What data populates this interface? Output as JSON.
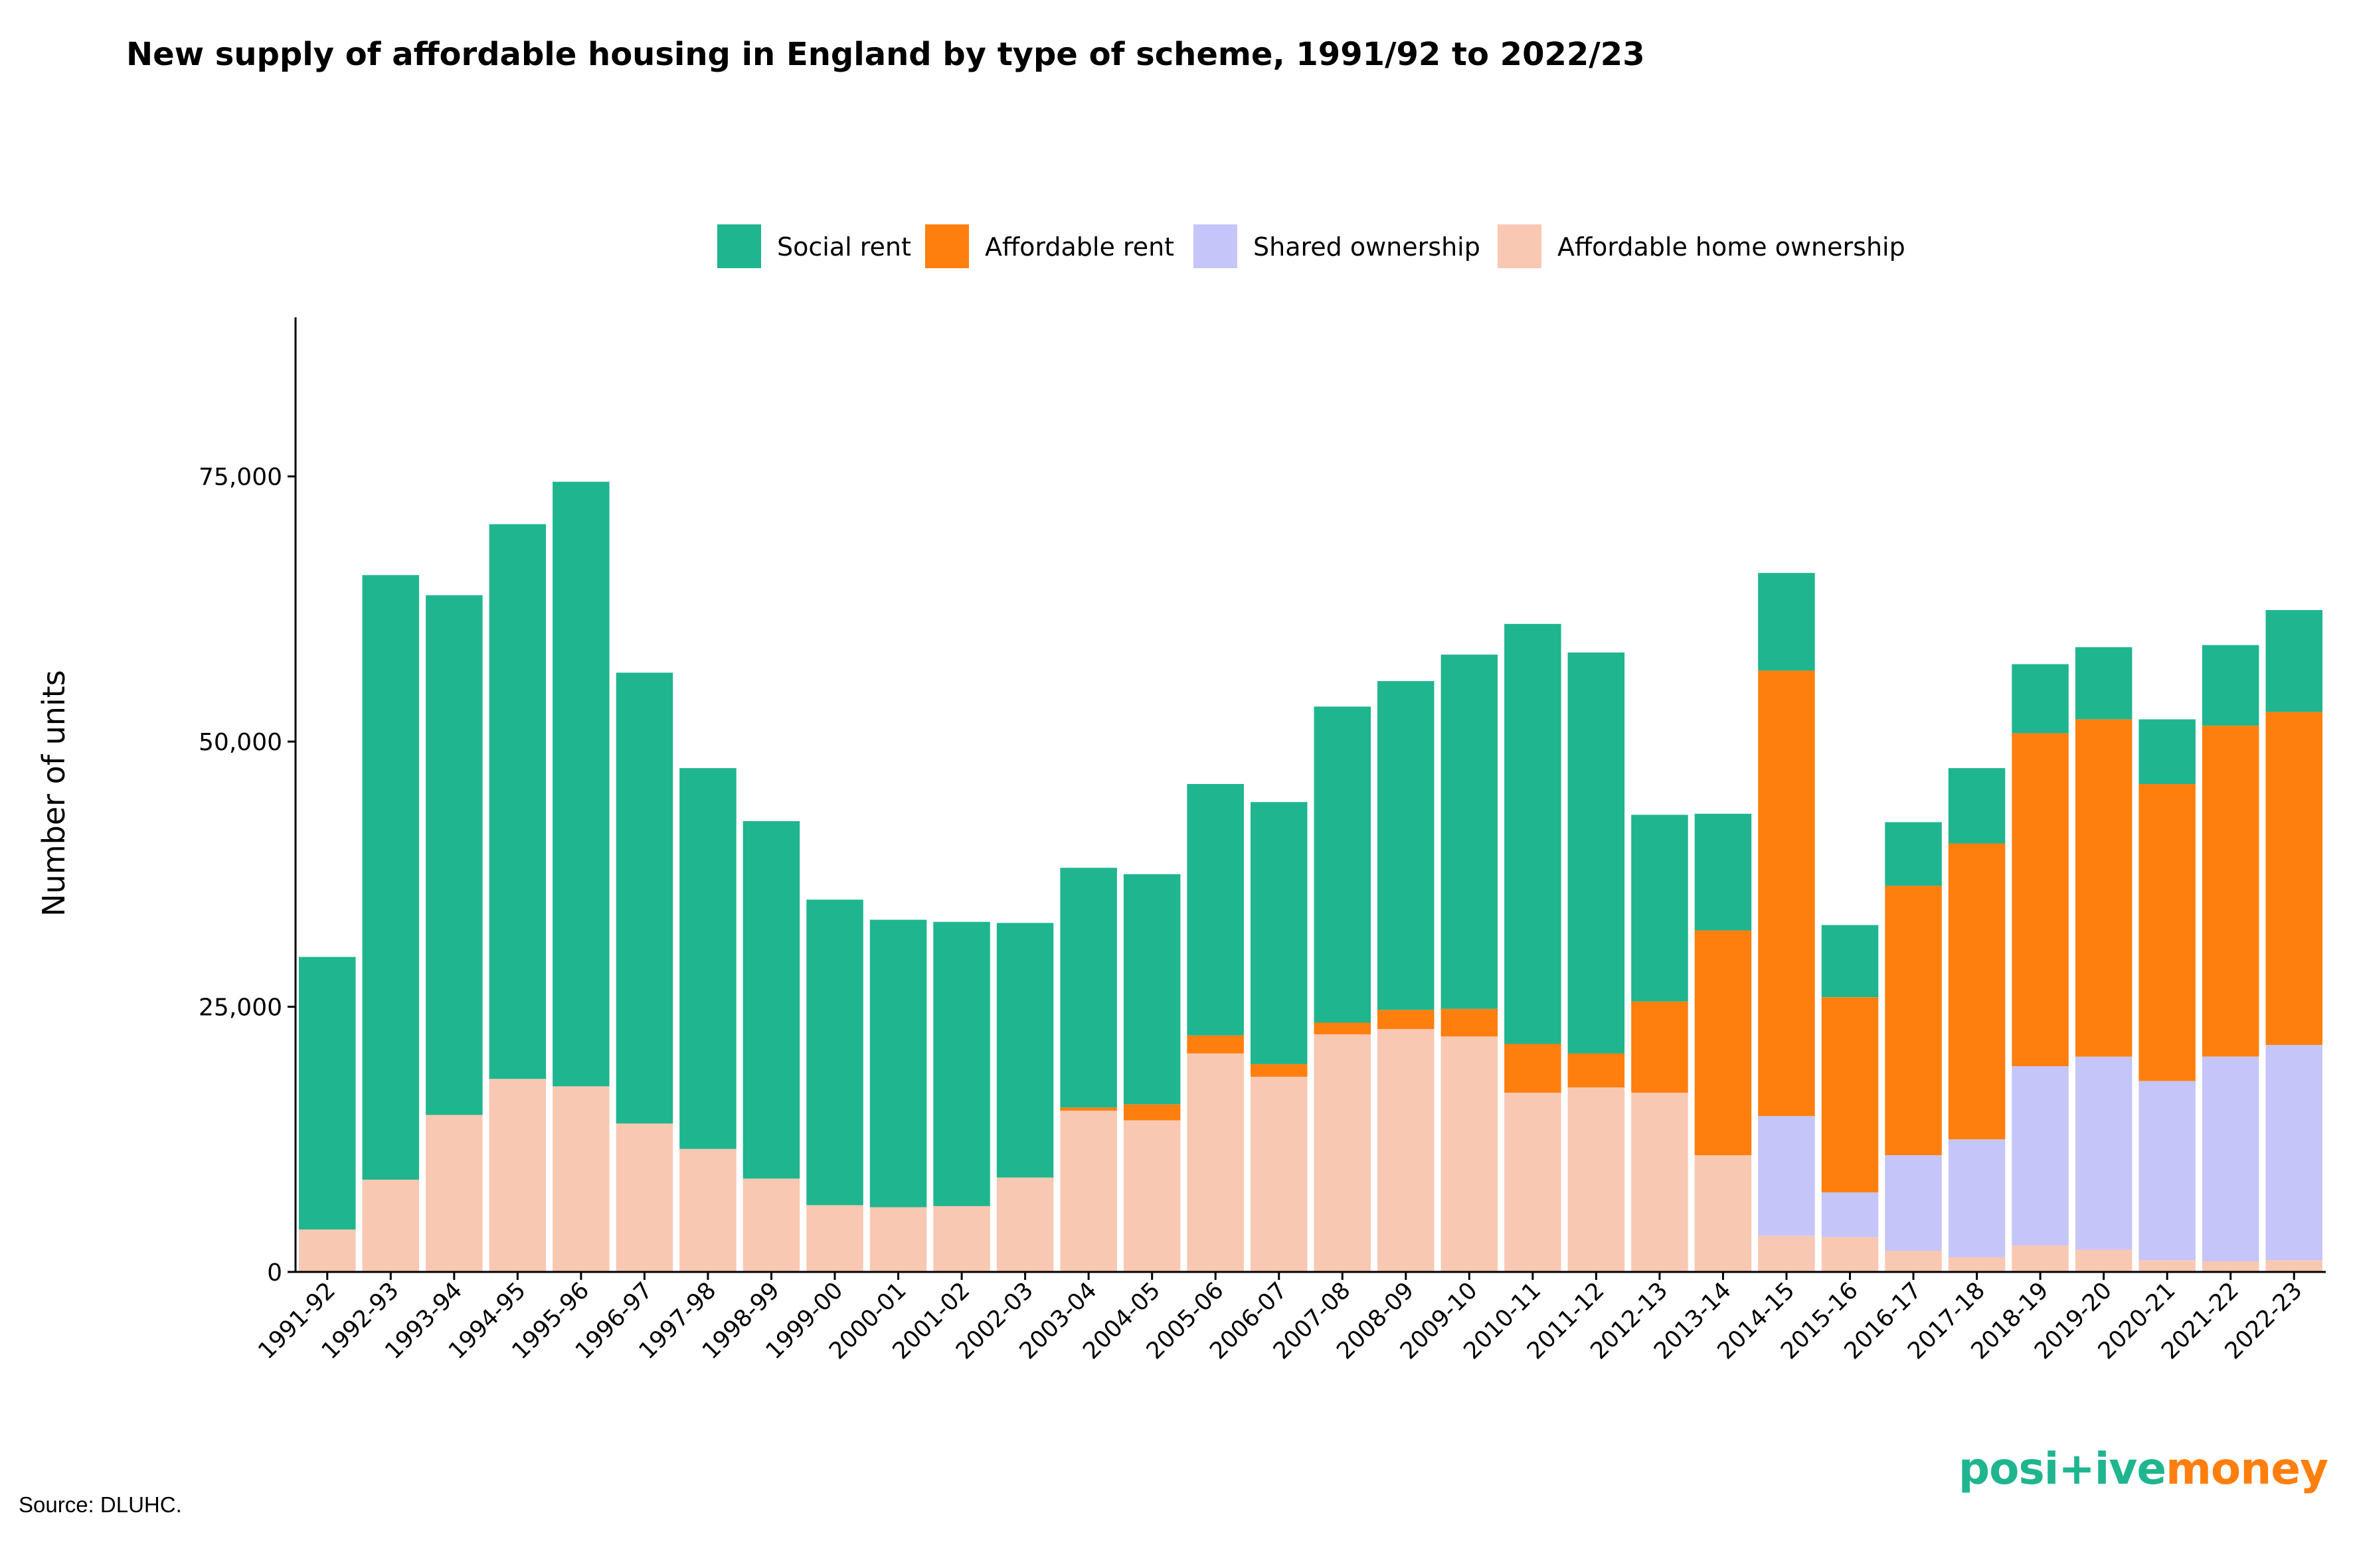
{
  "title": "New supply of affordable housing in England by type of scheme, 1991/92 to 2022/23",
  "source": "Source: DLUHC.",
  "logo": {
    "part1": "posi",
    "part2": "+ive",
    "part3": "money",
    "color_green": "#1fb58f",
    "color_orange": "#ff7f0e"
  },
  "chart_data": {
    "type": "bar",
    "stacked": true,
    "title": "New supply of affordable housing in England by type of scheme, 1991/92 to 2022/23",
    "xlabel": "",
    "ylabel": "Number of units",
    "ylim": [
      0,
      90000
    ],
    "yticks": [
      0,
      25000,
      50000,
      75000
    ],
    "ytick_labels": [
      "0",
      "25,000",
      "50,000",
      "75,000"
    ],
    "legend_position": "top",
    "categories": [
      "1991-92",
      "1992-93",
      "1993-94",
      "1994-95",
      "1995-96",
      "1996-97",
      "1997-98",
      "1998-99",
      "1999-00",
      "2000-01",
      "2001-02",
      "2002-03",
      "2003-04",
      "2004-05",
      "2005-06",
      "2006-07",
      "2007-08",
      "2008-09",
      "2009-10",
      "2010-11",
      "2011-12",
      "2012-13",
      "2013-14",
      "2014-15",
      "2015-16",
      "2016-17",
      "2017-18",
      "2018-19",
      "2019-20",
      "2020-21",
      "2021-22",
      "2022-23"
    ],
    "series": [
      {
        "name": "Affordable home ownership",
        "color": "#f9c8b2",
        "values": [
          4000,
          8700,
          14800,
          18200,
          17500,
          14000,
          11600,
          8800,
          6300,
          6100,
          6200,
          8900,
          15200,
          14300,
          20600,
          18400,
          22400,
          22900,
          22200,
          16900,
          17400,
          16900,
          11000,
          3400,
          3300,
          2000,
          1400,
          2500,
          2100,
          1100,
          1000,
          1100
        ]
      },
      {
        "name": "Shared ownership",
        "color": "#c5c5fa",
        "values": [
          0,
          0,
          0,
          0,
          0,
          0,
          0,
          0,
          0,
          0,
          0,
          0,
          0,
          0,
          0,
          0,
          0,
          0,
          0,
          0,
          0,
          0,
          0,
          11300,
          4200,
          9000,
          11100,
          16900,
          18200,
          16900,
          19300,
          20300
        ]
      },
      {
        "name": "Affordable rent",
        "color": "#ff7f0e",
        "values": [
          0,
          0,
          0,
          0,
          0,
          0,
          0,
          0,
          0,
          0,
          0,
          0,
          300,
          1500,
          1700,
          1200,
          1100,
          1800,
          2600,
          4600,
          3200,
          8600,
          21200,
          42000,
          18400,
          25400,
          27900,
          31400,
          31800,
          28000,
          31200,
          31400
        ]
      },
      {
        "name": "Social rent",
        "color": "#1fb58f",
        "values": [
          25700,
          57000,
          49000,
          52300,
          57000,
          42500,
          35900,
          33700,
          28800,
          27100,
          26800,
          24000,
          22600,
          21700,
          23700,
          24700,
          29800,
          31000,
          33400,
          39600,
          37800,
          17600,
          11000,
          9200,
          6800,
          6000,
          7100,
          6500,
          6800,
          6100,
          7600,
          9600
        ]
      }
    ],
    "legend": [
      "Social rent",
      "Affordable rent",
      "Shared ownership",
      "Affordable home ownership"
    ]
  }
}
